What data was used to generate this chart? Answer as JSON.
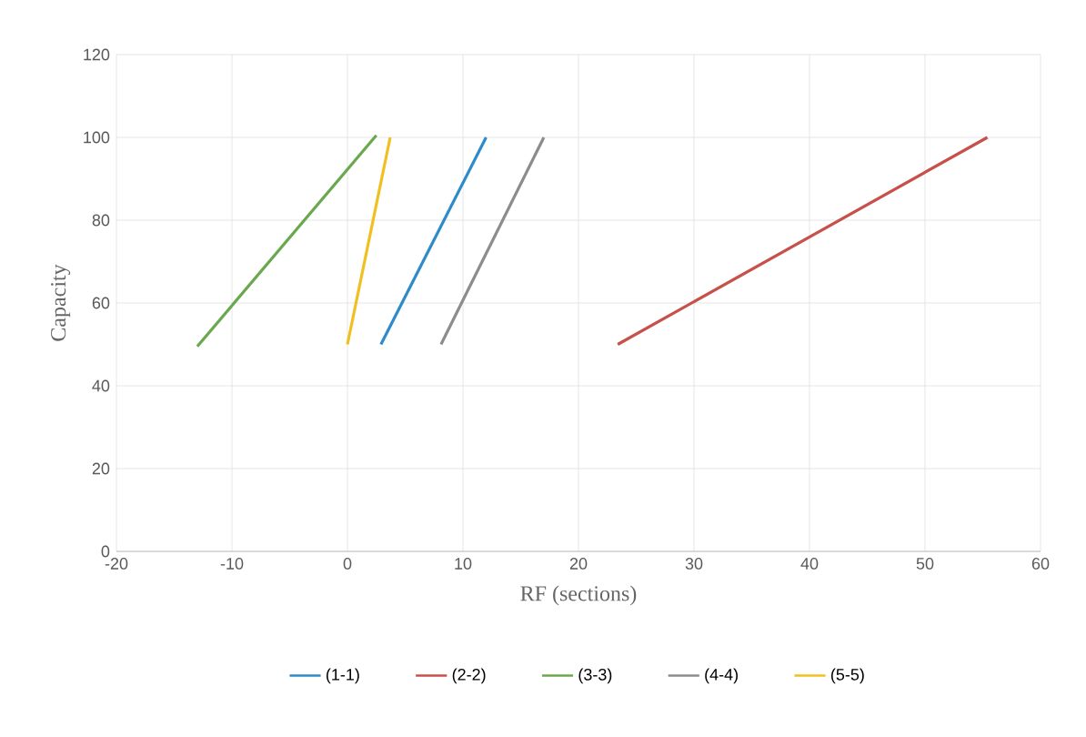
{
  "chart_data": {
    "type": "line",
    "xlabel": "RF (sections)",
    "ylabel": "Capacity",
    "xlim": [
      -20,
      60
    ],
    "xticks": [
      -20,
      -10,
      0,
      10,
      20,
      30,
      40,
      50,
      60
    ],
    "ylim": [
      0,
      120
    ],
    "yticks": [
      0,
      20,
      40,
      60,
      80,
      100,
      120
    ],
    "grid": true,
    "legend": "bottom",
    "marker": "none",
    "line_style": "solid",
    "series": [
      {
        "name": "(1-1)",
        "color": "#2e8bc9",
        "x": [
          2.9,
          12
        ],
        "values": [
          50,
          100
        ]
      },
      {
        "name": "(2-2)",
        "color": "#c8504a",
        "x": [
          23.4,
          55.4
        ],
        "values": [
          50,
          100
        ]
      },
      {
        "name": "(3-3)",
        "color": "#6aa84f",
        "x": [
          -13,
          2.5
        ],
        "values": [
          49.5,
          100.5
        ]
      },
      {
        "name": "(4-4)",
        "color": "#8c8c8c",
        "x": [
          8.1,
          17
        ],
        "values": [
          50,
          100
        ]
      },
      {
        "name": "(5-5)",
        "color": "#f0c020",
        "x": [
          0,
          3.7
        ],
        "values": [
          50,
          100
        ]
      }
    ]
  }
}
